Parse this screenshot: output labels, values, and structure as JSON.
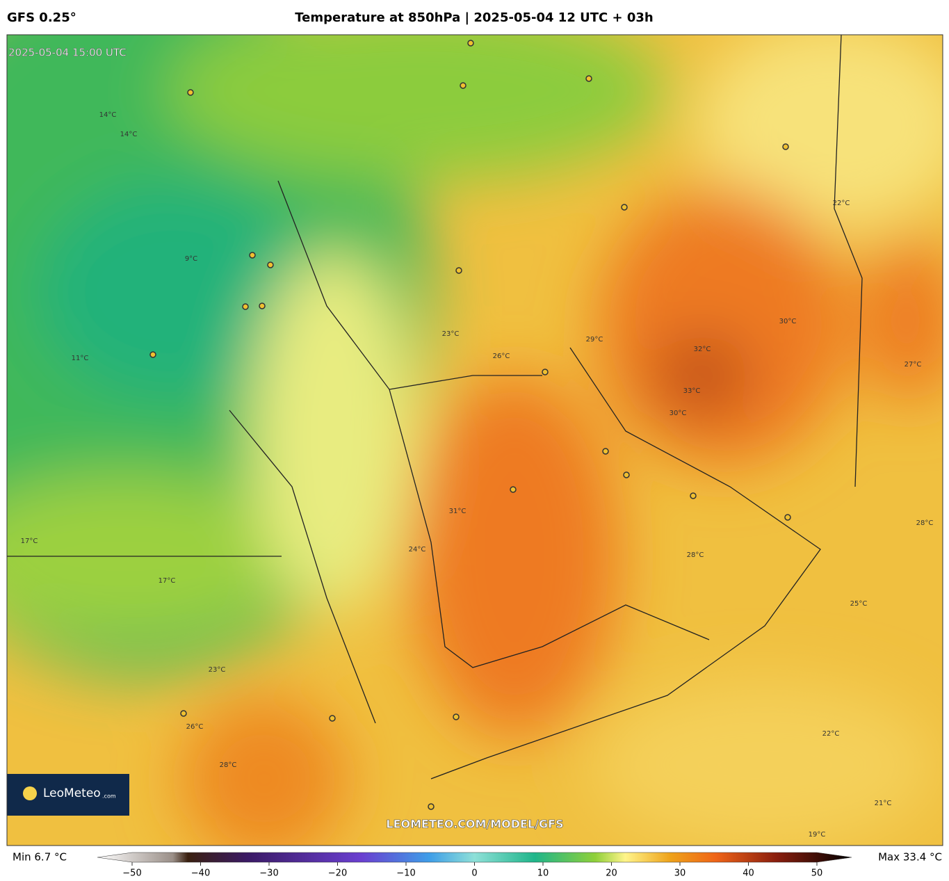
{
  "header": {
    "model": "GFS 0.25°",
    "title": "Temperature at 850hPa | 2025-05-04 12 UTC + 03h"
  },
  "map": {
    "valid_time": "2025-05-04 15:00 UTC",
    "watermark": "LEOMETEO.COM/MODEL/GFS",
    "logo": "LeoMeteo",
    "logo_suffix": ".com",
    "contour_labels": [
      "9°C",
      "11°C",
      "14°C",
      "14°C",
      "17°C",
      "17°C",
      "23°C",
      "26°C",
      "28°C",
      "31°C",
      "24°C",
      "29°C",
      "32°C",
      "33°C",
      "30°C",
      "28°C",
      "25°C",
      "22°C",
      "21°C",
      "19°C",
      "27°C",
      "30°C",
      "23°C",
      "26°C",
      "22°C",
      "28°C"
    ]
  },
  "colorbar": {
    "min_label": "Min 6.7 °C",
    "max_label": "Max 33.4 °C",
    "range": [
      -50,
      50
    ],
    "ticks": [
      {
        "value": -50,
        "label": "−50"
      },
      {
        "value": -40,
        "label": "−40"
      },
      {
        "value": -30,
        "label": "−30"
      },
      {
        "value": -20,
        "label": "−20"
      },
      {
        "value": -10,
        "label": "−10"
      },
      0,
      10,
      20,
      30,
      40,
      50
    ]
  }
}
